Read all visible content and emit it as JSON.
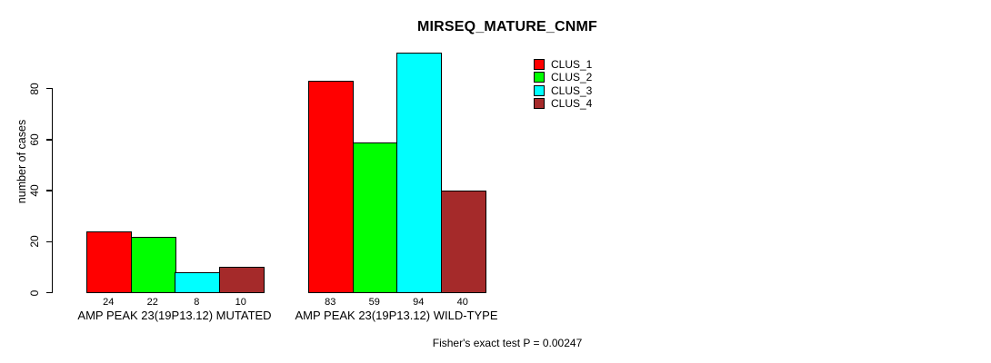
{
  "chart_data": {
    "type": "bar",
    "title": "MIRSEQ_MATURE_CNMF",
    "ylabel": "number of cases",
    "xlabel": "",
    "categories": [
      "AMP PEAK 23(19P13.12) MUTATED",
      "AMP PEAK 23(19P13.12) WILD-TYPE"
    ],
    "series": [
      {
        "name": "CLUS_1",
        "color": "#FF0000",
        "values": [
          24,
          83
        ]
      },
      {
        "name": "CLUS_2",
        "color": "#00FF00",
        "values": [
          22,
          59
        ]
      },
      {
        "name": "CLUS_3",
        "color": "#00FFFF",
        "values": [
          8,
          94
        ]
      },
      {
        "name": "CLUS_4",
        "color": "#A52A2A",
        "values": [
          10,
          40
        ]
      }
    ],
    "yticks": [
      0,
      20,
      40,
      60,
      80
    ],
    "ylim": [
      0,
      94
    ],
    "grid": false,
    "show_bar_values": true,
    "legend_position": "top-right",
    "footnote": "Fisher's exact test P = 0.00247"
  },
  "colors": {
    "background": "#FFFFFF",
    "axis": "#000000",
    "text": "#000000"
  }
}
